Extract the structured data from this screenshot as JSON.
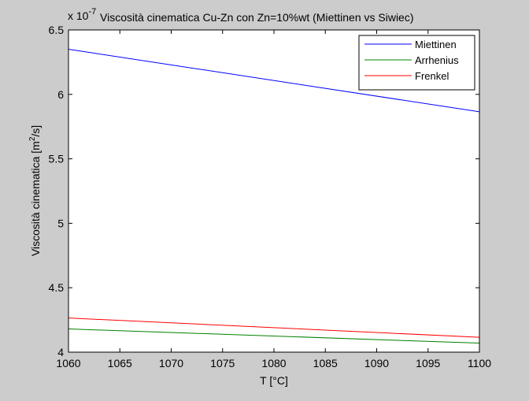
{
  "chart_data": {
    "type": "line",
    "title": "Viscosità cinematica Cu-Zn con Zn=10%wt (Miettinen vs Siwiec)",
    "exponent_prefix": "x 10",
    "exponent_value": "-7",
    "xlabel": "T [°C]",
    "ylabel_main": "Viscosità cinematica [m",
    "ylabel_sup": "2",
    "ylabel_end": "/s]",
    "xlim": [
      1060,
      1100
    ],
    "ylim": [
      4,
      6.5
    ],
    "xticks": [
      1060,
      1065,
      1070,
      1075,
      1080,
      1085,
      1090,
      1095,
      1100
    ],
    "yticks": [
      4,
      4.5,
      5,
      5.5,
      6,
      6.5
    ],
    "xtick_labels": [
      "1060",
      "1065",
      "1070",
      "1075",
      "1080",
      "1085",
      "1090",
      "1095",
      "1100"
    ],
    "ytick_labels": [
      "4",
      "4.5",
      "5",
      "5.5",
      "6",
      "6.5"
    ],
    "grid": false,
    "legend_position": "top-right",
    "series": [
      {
        "name": "Miettinen",
        "color": "#0000ff",
        "x": [
          1060,
          1100
        ],
        "y": [
          6.35,
          5.865
        ]
      },
      {
        "name": "Arrhenius",
        "color": "#008000",
        "x": [
          1060,
          1100
        ],
        "y": [
          4.18,
          4.07
        ]
      },
      {
        "name": "Frenkel",
        "color": "#ff0000",
        "x": [
          1060,
          1100
        ],
        "y": [
          4.265,
          4.115
        ]
      }
    ]
  }
}
